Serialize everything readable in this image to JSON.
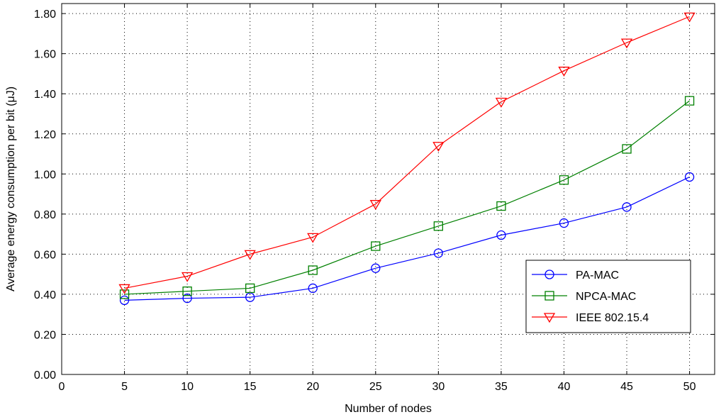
{
  "chart_data": {
    "type": "line",
    "xlabel": "Number of nodes",
    "ylabel": "Average energy consumption per bit (μJ)",
    "xlim": [
      0,
      52
    ],
    "ylim": [
      0,
      1.85
    ],
    "xticks": [
      0,
      5,
      10,
      15,
      20,
      25,
      30,
      35,
      40,
      45,
      50
    ],
    "xtick_labels": [
      "0",
      "5",
      "10",
      "15",
      "20",
      "25",
      "30",
      "35",
      "40",
      "45",
      "50"
    ],
    "yticks": [
      0,
      0.2,
      0.4,
      0.6,
      0.8,
      1.0,
      1.2,
      1.4,
      1.6,
      1.8
    ],
    "ytick_labels": [
      "0.00",
      "0.20",
      "0.40",
      "0.60",
      "0.80",
      "1.00",
      "1.20",
      "1.40",
      "1.60",
      "1.80"
    ],
    "grid": true,
    "legend_position": "bottom-right",
    "x": [
      5,
      10,
      15,
      20,
      25,
      30,
      35,
      40,
      45,
      50
    ],
    "series": [
      {
        "name": "PA-MAC",
        "color": "#0000ff",
        "marker": "circle",
        "values": [
          0.37,
          0.38,
          0.385,
          0.43,
          0.53,
          0.605,
          0.695,
          0.755,
          0.835,
          0.985
        ]
      },
      {
        "name": "NPCA-MAC",
        "color": "#008000",
        "marker": "square",
        "values": [
          0.4,
          0.415,
          0.43,
          0.52,
          0.64,
          0.74,
          0.84,
          0.97,
          1.125,
          1.365
        ]
      },
      {
        "name": "IEEE 802.15.4",
        "color": "#ff0000",
        "marker": "triangle-down",
        "values": [
          0.43,
          0.49,
          0.6,
          0.685,
          0.85,
          1.14,
          1.36,
          1.515,
          1.655,
          1.785
        ]
      }
    ]
  }
}
